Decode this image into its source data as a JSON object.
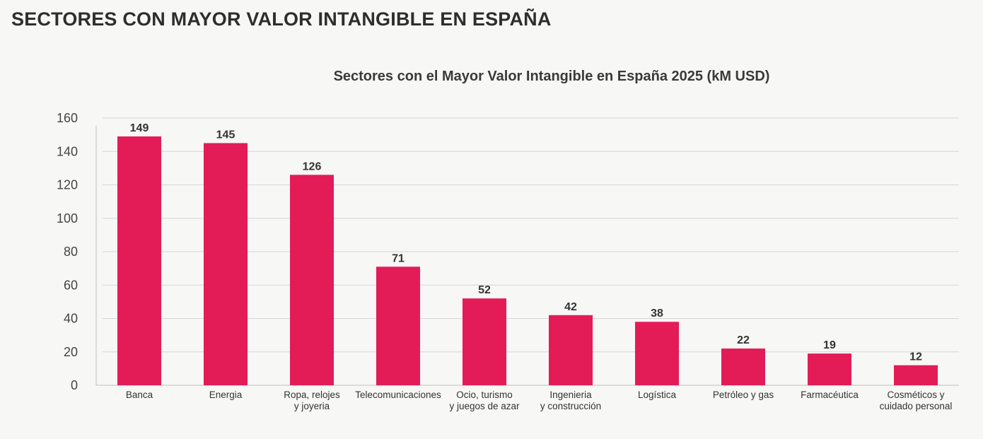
{
  "page": {
    "title": "SECTORES CON MAYOR VALOR INTANGIBLE EN ESPAÑA"
  },
  "chart_data": {
    "type": "bar",
    "title": "Sectores con el Mayor Valor Intangible en España 2025 (kM USD)",
    "xlabel": "",
    "ylabel": "",
    "ylim": [
      0,
      160
    ],
    "yticks": [
      0,
      20,
      40,
      60,
      80,
      100,
      120,
      140,
      160
    ],
    "grid": true,
    "legend": "none",
    "bar_color": "#e31c58",
    "categories": [
      [
        "Banca"
      ],
      [
        "Energia"
      ],
      [
        "Ropa, relojes",
        "y joyeria"
      ],
      [
        "Telecomunicaciones"
      ],
      [
        "Ocio, turismo",
        "y juegos de azar"
      ],
      [
        "Ingenieria",
        "y construcción"
      ],
      [
        "Logística"
      ],
      [
        "Petróleo y gas"
      ],
      [
        "Farmacéutica"
      ],
      [
        "Cosméticos y",
        "cuidado personal"
      ]
    ],
    "values": [
      149,
      145,
      126,
      71,
      52,
      42,
      38,
      22,
      19,
      12
    ]
  }
}
